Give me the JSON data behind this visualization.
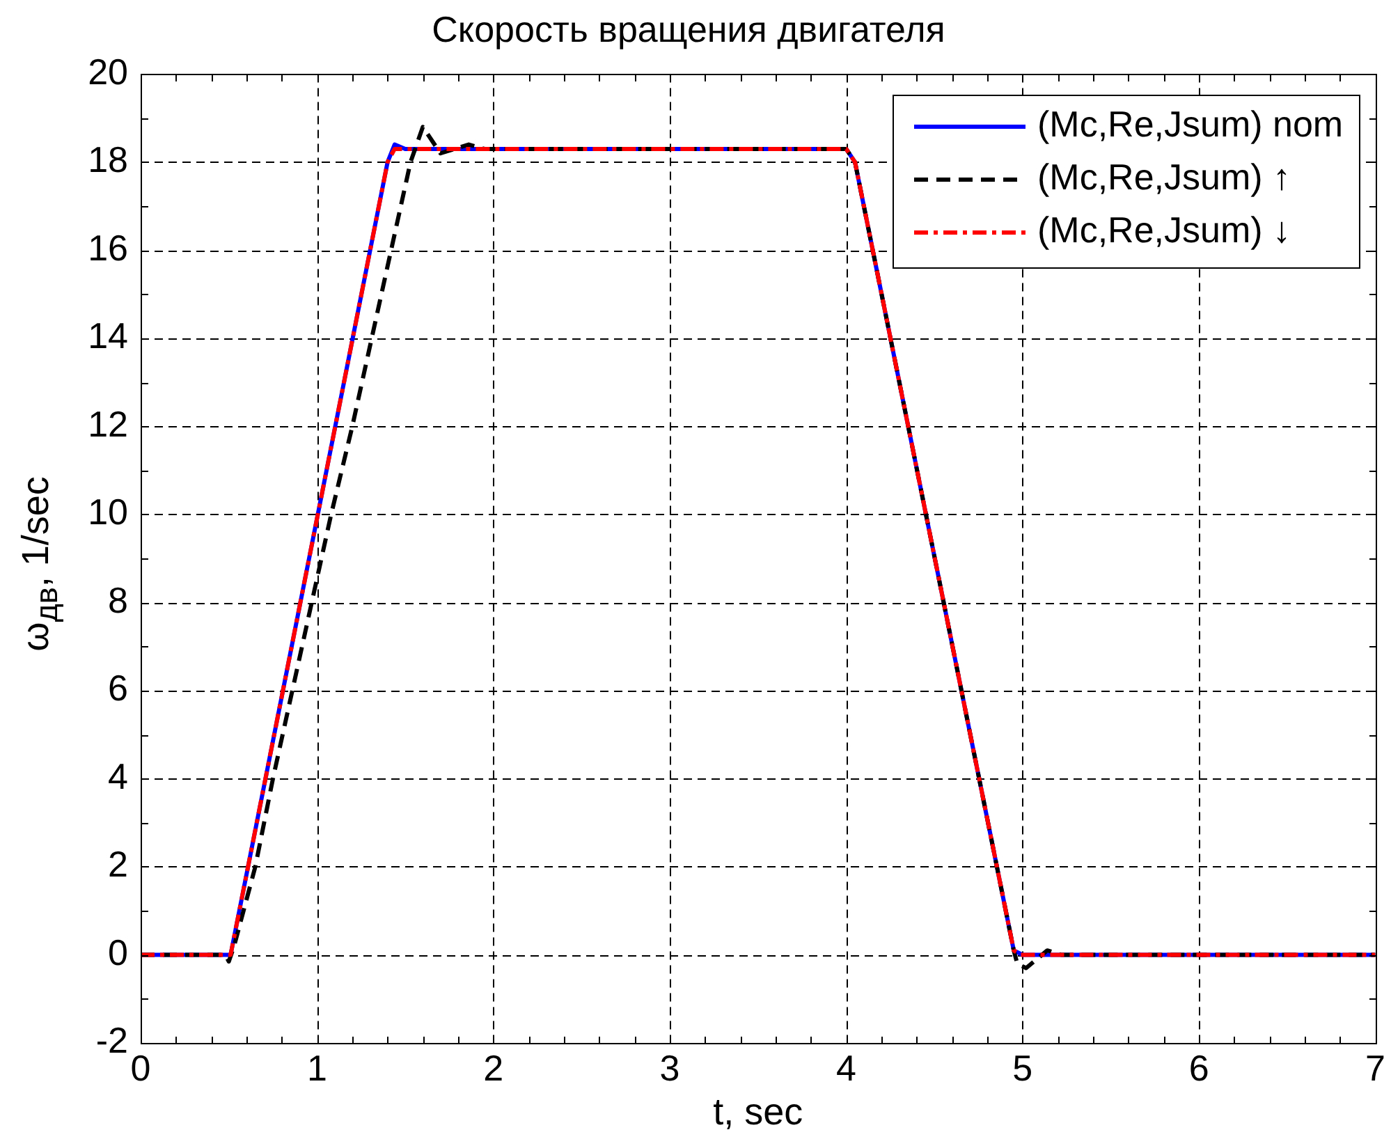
{
  "chart_data": {
    "type": "line",
    "title": "Скорость вращения двигателя",
    "xlabel": "t, sec",
    "ylabel": "ω$_{дв}$, 1/sec",
    "xlim": [
      0,
      7
    ],
    "xticks": [
      0,
      {
        "value": 0.2,
        "label": null
      },
      {
        "value": 0.4,
        "label": null
      },
      {
        "value": 0.6,
        "label": null
      },
      {
        "value": 0.8,
        "label": null
      },
      1,
      {
        "value": 1.2,
        "label": null
      },
      {
        "value": 1.4,
        "label": null
      },
      {
        "value": 1.6,
        "label": null
      },
      {
        "value": 1.8,
        "label": null
      },
      2,
      {
        "value": 2.2,
        "label": null
      },
      {
        "value": 2.4,
        "label": null
      },
      {
        "value": 2.6,
        "label": null
      },
      {
        "value": 2.8,
        "label": null
      },
      3,
      {
        "value": 3.2,
        "label": null
      },
      {
        "value": 3.4,
        "label": null
      },
      {
        "value": 3.6,
        "label": null
      },
      {
        "value": 3.8,
        "label": null
      },
      4,
      {
        "value": 4.2,
        "label": null
      },
      {
        "value": 4.4,
        "label": null
      },
      {
        "value": 4.6,
        "label": null
      },
      {
        "value": 4.8,
        "label": null
      },
      5,
      {
        "value": 5.2,
        "label": null
      },
      {
        "value": 5.4,
        "label": null
      },
      {
        "value": 5.6,
        "label": null
      },
      {
        "value": 5.8,
        "label": null
      },
      6,
      {
        "value": 6.2,
        "label": null
      },
      {
        "value": 6.4,
        "label": null
      },
      {
        "value": 6.6,
        "label": null
      },
      {
        "value": 6.8,
        "label": null
      },
      7
    ],
    "ylim": [
      -2,
      20
    ],
    "yticks": [
      -2,
      {
        "value": -1,
        "label": null
      },
      0,
      {
        "value": 1,
        "label": null
      },
      2,
      {
        "value": 3,
        "label": null
      },
      4,
      {
        "value": 5,
        "label": null
      },
      6,
      {
        "value": 7,
        "label": null
      },
      8,
      {
        "value": 9,
        "label": null
      },
      10,
      {
        "value": 11,
        "label": null
      },
      12,
      {
        "value": 13,
        "label": null
      },
      14,
      {
        "value": 15,
        "label": null
      },
      16,
      {
        "value": 17,
        "label": null
      },
      18,
      {
        "value": 19,
        "label": null
      },
      20
    ],
    "grid": true,
    "legend": "top right",
    "series": [
      {
        "name": "(Mc,Re,Jsum) nom",
        "color": "#0000ff",
        "line_style": "solid",
        "x": [
          0,
          0.51,
          1.4,
          1.44,
          1.5,
          4.0,
          4.05,
          4.95,
          5.0,
          7
        ],
        "values": [
          0,
          0,
          18.0,
          18.4,
          18.3,
          18.3,
          18.0,
          0.1,
          0,
          0
        ]
      },
      {
        "name": "(Mc,Re,Jsum) ↑",
        "color": "#000000",
        "line_style": "dashed",
        "x": [
          0,
          0.48,
          0.5,
          0.53,
          0.65,
          0.75,
          0.86,
          0.97,
          1.08,
          1.2,
          1.31,
          1.42,
          1.53,
          1.6,
          1.7,
          1.78,
          1.86,
          1.95,
          4.0,
          4.05,
          4.95,
          4.97,
          5.02,
          5.14,
          5.22,
          7
        ],
        "values": [
          0,
          0,
          -0.15,
          0.2,
          2,
          4,
          6,
          8,
          10,
          12,
          14,
          16,
          18,
          18.8,
          18.2,
          18.3,
          18.4,
          18.3,
          18.3,
          18.0,
          0.1,
          -0.2,
          -0.3,
          0.1,
          0,
          0
        ]
      },
      {
        "name": "(Mc,Re,Jsum) ↓",
        "color": "#ff0000",
        "line_style": "dashdot",
        "x": [
          0,
          0.51,
          1.4,
          1.44,
          4.0,
          4.05,
          4.95,
          4.99,
          7
        ],
        "values": [
          0,
          0,
          18.0,
          18.3,
          18.3,
          18.0,
          0.1,
          0,
          0
        ]
      }
    ]
  }
}
